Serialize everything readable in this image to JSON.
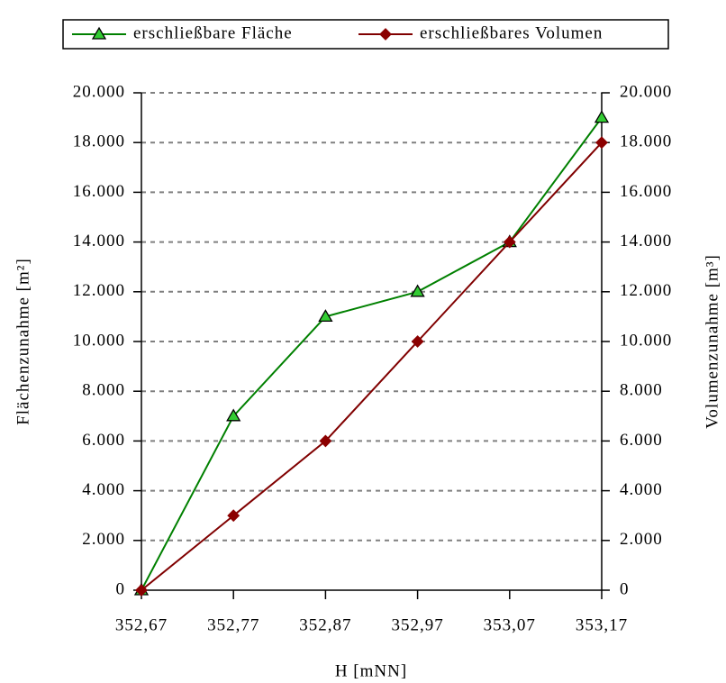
{
  "chart_data": {
    "type": "line",
    "x_label": "H [mNN]",
    "y_label": "Flächenzunahme [m²]",
    "y2_label": "Volumenzunahme [m³]",
    "categories": [
      "352,67",
      "352,77",
      "352,87",
      "352,97",
      "353,07",
      "353,17"
    ],
    "series": [
      {
        "name": "erschließbare Fläche",
        "color": "#008000",
        "marker_color": "#33cc33",
        "marker": "triangle",
        "axis": "y",
        "values": [
          0,
          7000,
          11000,
          12000,
          14000,
          19000
        ]
      },
      {
        "name": "erschließbares Volumen",
        "color": "#800000",
        "marker_color": "#8b0000",
        "marker": "diamond",
        "axis": "y2",
        "values": [
          0,
          3000,
          6000,
          10000,
          14000,
          18000
        ]
      }
    ],
    "ylim": [
      0,
      20000
    ],
    "yticks": [
      0,
      {
        "value": 2000,
        "label": "2.000"
      },
      {
        "value": 4000,
        "label": "4.000"
      },
      {
        "value": 6000,
        "label": "6.000"
      },
      {
        "value": 8000,
        "label": "8.000"
      },
      {
        "value": 10000,
        "label": "10.000"
      },
      {
        "value": 12000,
        "label": "12.000"
      },
      {
        "value": 14000,
        "label": "14.000"
      },
      {
        "value": 16000,
        "label": "16.000"
      },
      {
        "value": 18000,
        "label": "18.000"
      },
      {
        "value": 20000,
        "label": "20.000"
      }
    ],
    "y2lim": [
      0,
      20000
    ],
    "y2ticks": [
      0,
      {
        "value": 2000,
        "label": "2.000"
      },
      {
        "value": 4000,
        "label": "4.000"
      },
      {
        "value": 6000,
        "label": "6.000"
      },
      {
        "value": 8000,
        "label": "8.000"
      },
      {
        "value": 10000,
        "label": "10.000"
      },
      {
        "value": 12000,
        "label": "12.000"
      },
      {
        "value": 14000,
        "label": "14.000"
      },
      {
        "value": 16000,
        "label": "16.000"
      },
      {
        "value": 18000,
        "label": "18.000"
      },
      {
        "value": 20000,
        "label": "20.000"
      }
    ],
    "grid": true,
    "legend": "top"
  }
}
